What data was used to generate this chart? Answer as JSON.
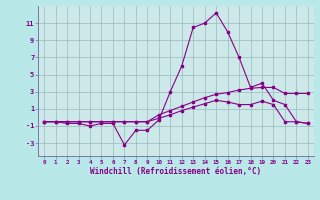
{
  "xlabel": "Windchill (Refroidissement éolien,°C)",
  "bg_color": "#b8e8e8",
  "plot_bg_color": "#cce8e8",
  "line_color": "#880088",
  "grid_color": "#99bbbb",
  "spine_color": "#7777aa",
  "xlim": [
    -0.5,
    23.5
  ],
  "ylim": [
    -4.5,
    13.0
  ],
  "xticks": [
    0,
    1,
    2,
    3,
    4,
    5,
    6,
    7,
    8,
    9,
    10,
    11,
    12,
    13,
    14,
    15,
    16,
    17,
    18,
    19,
    20,
    21,
    22,
    23
  ],
  "yticks": [
    -3,
    -1,
    1,
    3,
    5,
    7,
    9,
    11
  ],
  "series1_x": [
    0,
    1,
    2,
    3,
    4,
    5,
    6,
    7,
    8,
    9,
    10,
    11,
    12,
    13,
    14,
    15,
    16,
    17,
    18,
    19,
    20,
    21,
    22,
    23
  ],
  "series1_y": [
    -0.5,
    -0.5,
    -0.5,
    -0.5,
    -0.5,
    -0.5,
    -0.5,
    -0.5,
    -0.5,
    -0.5,
    0.3,
    0.8,
    1.3,
    1.8,
    2.3,
    2.7,
    2.9,
    3.2,
    3.4,
    3.5,
    3.5,
    2.8,
    2.8,
    2.8
  ],
  "series2_x": [
    0,
    1,
    2,
    3,
    4,
    5,
    6,
    7,
    8,
    9,
    10,
    11,
    12,
    13,
    14,
    15,
    16,
    17,
    18,
    19,
    20,
    21,
    22,
    23
  ],
  "series2_y": [
    -0.5,
    -0.5,
    -0.5,
    -0.5,
    -0.5,
    -0.5,
    -0.5,
    -0.5,
    -0.5,
    -0.5,
    -0.1,
    0.3,
    0.8,
    1.2,
    1.6,
    2.0,
    1.8,
    1.5,
    1.5,
    1.9,
    1.5,
    -0.5,
    -0.5,
    -0.7
  ],
  "series3_x": [
    0,
    1,
    2,
    3,
    4,
    5,
    6,
    7,
    8,
    9,
    10,
    11,
    12,
    13,
    14,
    15,
    16,
    17,
    18,
    19,
    20,
    21,
    22,
    23
  ],
  "series3_y": [
    -0.5,
    -0.5,
    -0.7,
    -0.7,
    -1.0,
    -0.7,
    -0.7,
    -3.2,
    -1.5,
    -1.5,
    -0.3,
    3.0,
    6.0,
    10.5,
    11.0,
    12.2,
    10.0,
    7.0,
    3.5,
    4.0,
    2.0,
    1.5,
    -0.5,
    -0.7
  ]
}
